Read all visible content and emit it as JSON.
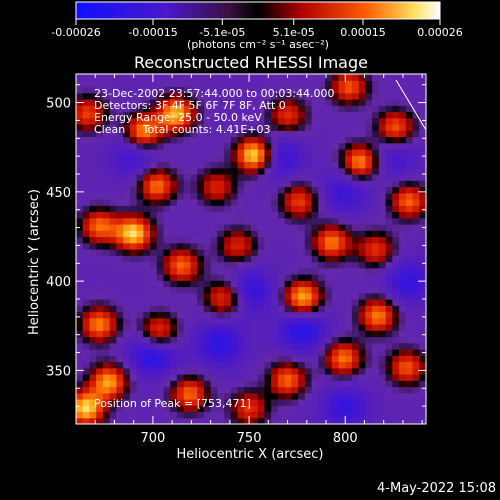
{
  "chart_data": {
    "type": "heatmap",
    "title": "Reconstructed RHESSI Image",
    "xlabel": "Heliocentric X (arcsec)",
    "ylabel": "Heliocentric Y (arcsec)",
    "xlim": [
      660,
      842
    ],
    "ylim": [
      320,
      516
    ],
    "x_ticks": [
      700,
      750,
      800
    ],
    "y_ticks": [
      350,
      400,
      450,
      500
    ],
    "colorbar": {
      "ticks": [
        "-0.00026",
        "-0.00015",
        "-5.1e-05",
        "5.1e-05",
        "0.00015",
        "0.00026"
      ],
      "tick_values": [
        -0.00026,
        -0.00015,
        -5.1e-05,
        5.1e-05,
        0.00015,
        0.00026
      ],
      "range": [
        -0.00026,
        0.00026
      ],
      "units": "(photons cm⁻² s⁻¹ asec⁻²)"
    },
    "annotations": [
      "23-Dec-2002 23:57:44.000 to 00:03:44.000",
      "Detectors: 3F 4F 5F 6F 7F 8F, Att 0",
      "Energy Range: 25.0 - 50.0 keV",
      "Clean     Total counts: 4.41E+03"
    ],
    "peak_label": "Position of Peak = [753,471]",
    "peak": [
      753,
      471
    ],
    "hotspots": [
      {
        "x": 753,
        "y": 471,
        "v": 1.0
      },
      {
        "x": 712,
        "y": 494,
        "v": 0.78
      },
      {
        "x": 695,
        "y": 484,
        "v": 0.7
      },
      {
        "x": 702,
        "y": 454,
        "v": 0.6
      },
      {
        "x": 672,
        "y": 431,
        "v": 0.55
      },
      {
        "x": 690,
        "y": 427,
        "v": 0.85
      },
      {
        "x": 715,
        "y": 409,
        "v": 0.55
      },
      {
        "x": 703,
        "y": 372,
        "v": 0.55
      },
      {
        "x": 737,
        "y": 391,
        "v": 0.5
      },
      {
        "x": 778,
        "y": 391,
        "v": 0.78
      },
      {
        "x": 793,
        "y": 422,
        "v": 0.6
      },
      {
        "x": 808,
        "y": 467,
        "v": 0.7
      },
      {
        "x": 776,
        "y": 445,
        "v": 0.45
      },
      {
        "x": 833,
        "y": 445,
        "v": 0.55
      },
      {
        "x": 802,
        "y": 509,
        "v": 0.5
      },
      {
        "x": 826,
        "y": 486,
        "v": 0.55
      },
      {
        "x": 672,
        "y": 376,
        "v": 0.62
      },
      {
        "x": 677,
        "y": 344,
        "v": 0.7
      },
      {
        "x": 665,
        "y": 329,
        "v": 0.85
      },
      {
        "x": 719,
        "y": 337,
        "v": 0.55
      },
      {
        "x": 770,
        "y": 345,
        "v": 0.55
      },
      {
        "x": 799,
        "y": 357,
        "v": 0.6
      },
      {
        "x": 817,
        "y": 381,
        "v": 0.62
      },
      {
        "x": 832,
        "y": 352,
        "v": 0.5
      },
      {
        "x": 750,
        "y": 329,
        "v": 0.4
      },
      {
        "x": 744,
        "y": 420,
        "v": 0.35
      },
      {
        "x": 666,
        "y": 494,
        "v": 0.45
      },
      {
        "x": 770,
        "y": 493,
        "v": 0.4
      },
      {
        "x": 733,
        "y": 453,
        "v": 0.35
      },
      {
        "x": 816,
        "y": 418,
        "v": 0.4
      }
    ],
    "coldspots": [
      {
        "x": 700,
        "y": 360,
        "v": -0.6
      },
      {
        "x": 750,
        "y": 395,
        "v": -0.5
      },
      {
        "x": 765,
        "y": 470,
        "v": -0.5
      },
      {
        "x": 800,
        "y": 330,
        "v": -0.45
      },
      {
        "x": 690,
        "y": 470,
        "v": -0.4
      },
      {
        "x": 833,
        "y": 400,
        "v": -0.45
      },
      {
        "x": 800,
        "y": 450,
        "v": -0.4
      },
      {
        "x": 735,
        "y": 365,
        "v": -0.5
      },
      {
        "x": 778,
        "y": 373,
        "v": -0.55
      },
      {
        "x": 825,
        "y": 470,
        "v": -0.35
      }
    ]
  },
  "footer": {
    "date": "4-May-2022 15:08"
  }
}
